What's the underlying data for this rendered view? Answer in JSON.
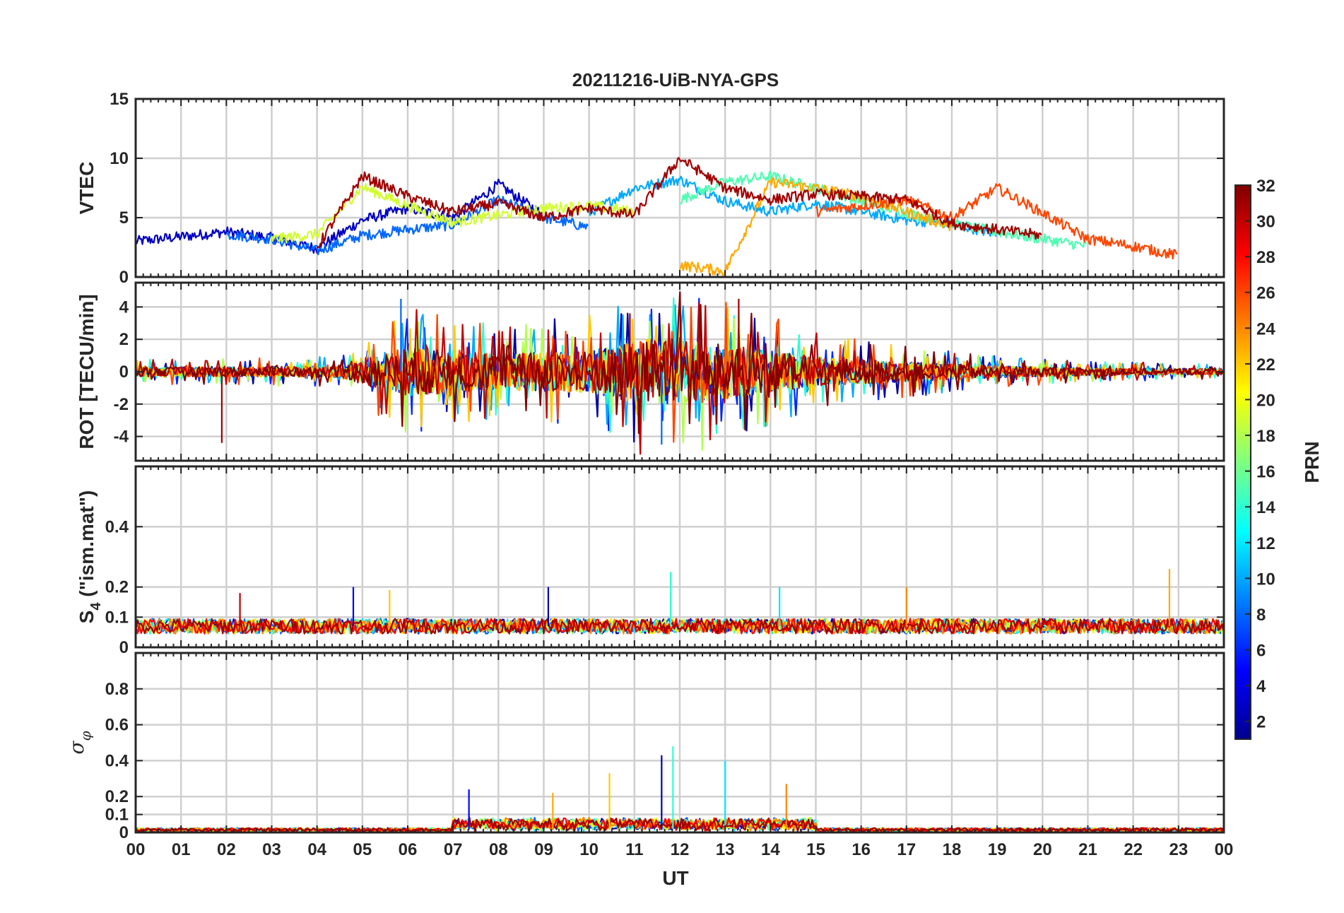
{
  "chart_data": [
    {
      "type": "line",
      "title": "20211216-UiB-NYA-GPS",
      "ylabel": "VTEC",
      "ylim": [
        0,
        15
      ],
      "yticks": [
        "0",
        "5",
        "10",
        "15"
      ],
      "xlabel": "",
      "note": "Multiple GPS PRN traces colored by PRN (1-32); overall envelope approx 1-6 TECU with enhancements up to ~10.5 around 11-12 UT",
      "series": [
        {
          "prn": 3,
          "x": [
            0.0,
            1.0,
            2.0,
            3.0,
            4.0,
            5.0,
            6.0,
            7.0,
            8.0,
            9.0
          ],
          "y": [
            3.0,
            3.4,
            3.8,
            3.3,
            2.4,
            4.8,
            5.8,
            5.0,
            7.8,
            5.2
          ]
        },
        {
          "prn": 8,
          "x": [
            2.0,
            3.0,
            4.0,
            5.0,
            6.0,
            7.0,
            8.0,
            9.0,
            10.0
          ],
          "y": [
            3.6,
            3.2,
            2.2,
            3.5,
            4.0,
            4.4,
            6.5,
            5.0,
            4.2
          ]
        },
        {
          "prn": 10,
          "x": [
            10.0,
            11.0,
            12.0,
            13.0,
            14.0,
            15.0,
            16.0,
            17.0,
            18.0,
            19.0
          ],
          "y": [
            5.4,
            7.5,
            8.2,
            6.4,
            5.5,
            6.2,
            5.5,
            4.8,
            4.5,
            3.6
          ]
        },
        {
          "prn": 15,
          "x": [
            12.0,
            13.0,
            14.0,
            15.0,
            16.0,
            17.0,
            18.0,
            19.0,
            20.0,
            21.0
          ],
          "y": [
            6.5,
            8.0,
            8.5,
            7.5,
            6.4,
            5.4,
            4.5,
            3.8,
            3.2,
            2.6
          ]
        },
        {
          "prn": 19,
          "x": [
            3.0,
            4.0,
            5.0,
            6.0,
            7.0,
            8.0,
            9.0,
            10.0,
            11.0
          ],
          "y": [
            3.2,
            3.6,
            7.6,
            6.0,
            4.6,
            5.2,
            5.8,
            6.0,
            5.5
          ]
        },
        {
          "prn": 23,
          "x": [
            12.0,
            13.0,
            14.0,
            15.0,
            16.0,
            17.0,
            18.0
          ],
          "y": [
            1.0,
            0.5,
            8.0,
            7.5,
            6.8,
            5.5,
            4.2
          ]
        },
        {
          "prn": 26,
          "x": [
            15.0,
            16.0,
            17.0,
            18.0,
            19.0,
            20.0,
            21.0,
            22.0,
            23.0
          ],
          "y": [
            5.5,
            6.0,
            6.5,
            5.0,
            7.5,
            5.4,
            3.2,
            2.6,
            1.8
          ]
        },
        {
          "prn": 31,
          "x": [
            4.0,
            5.0,
            6.0,
            7.0,
            8.0,
            9.0,
            10.0,
            11.0,
            12.0,
            13.0,
            14.0,
            15.0,
            16.0,
            17.0,
            18.0,
            19.0,
            20.0
          ],
          "y": [
            2.5,
            8.5,
            6.8,
            5.5,
            6.2,
            5.0,
            5.8,
            5.2,
            10.0,
            7.5,
            6.5,
            7.0,
            6.8,
            6.5,
            4.5,
            4.0,
            3.5
          ]
        }
      ]
    },
    {
      "type": "line",
      "ylabel": "ROT [TECU/min]",
      "ylim": [
        -5.5,
        5.5
      ],
      "yticks": [
        "-4",
        "-2",
        "0",
        "2",
        "4"
      ],
      "note": "Rate of TEC; fluctuations near 0, strongest ±4.5 between ~05 and 14 UT",
      "envelope": {
        "x": [
          0,
          2,
          4.5,
          6,
          8,
          10,
          11.5,
          13,
          15,
          17,
          19,
          21,
          24
        ],
        "amplitude": [
          0.5,
          0.5,
          0.6,
          2.5,
          1.8,
          2.2,
          3.5,
          2.8,
          1.5,
          1.0,
          0.6,
          0.4,
          0.3
        ]
      },
      "peaks": [
        {
          "x": 1.9,
          "y": -4.4
        },
        {
          "x": 5.85,
          "y": 4.5
        },
        {
          "x": 13.3,
          "y": 4.5
        },
        {
          "x": 11.6,
          "y": -4.5
        },
        {
          "x": 10.9,
          "y": 3.6
        }
      ]
    },
    {
      "type": "line",
      "ylabel": "S4 (\"ism.mat\")",
      "ylabel_main": "S",
      "ylabel_sub": "4",
      "ylabel_rest": " (\"ism.mat\")",
      "ylim": [
        0,
        0.6
      ],
      "yticks": [
        "0",
        "0.1",
        "0.2",
        "0.4"
      ],
      "note": "Amplitude scintillation index, baseline ~0.05-0.1 with spikes to ~0.25",
      "baseline": 0.07,
      "peaks": [
        {
          "x": 4.8,
          "y": 0.2
        },
        {
          "x": 5.6,
          "y": 0.19
        },
        {
          "x": 9.1,
          "y": 0.2
        },
        {
          "x": 11.8,
          "y": 0.25
        },
        {
          "x": 14.2,
          "y": 0.2
        },
        {
          "x": 17.0,
          "y": 0.2
        },
        {
          "x": 22.8,
          "y": 0.26
        },
        {
          "x": 2.3,
          "y": 0.18
        }
      ]
    },
    {
      "type": "line",
      "ylabel": "σ φ",
      "ylabel_main": "σ",
      "ylabel_sub": "φ",
      "xlabel": "UT",
      "ylim": [
        0,
        1.0
      ],
      "yticks": [
        "0",
        "0.1",
        "0.2",
        "0.4",
        "0.6",
        "0.8"
      ],
      "xticks": [
        "00",
        "01",
        "02",
        "03",
        "04",
        "05",
        "06",
        "07",
        "08",
        "09",
        "10",
        "11",
        "12",
        "13",
        "14",
        "15",
        "16",
        "17",
        "18",
        "19",
        "20",
        "21",
        "22",
        "23",
        "00"
      ],
      "note": "Phase scintillation index, baseline ~0.01-0.03 with enhancements 07-15 UT up to ~0.48",
      "peaks": [
        {
          "x": 7.35,
          "y": 0.24
        },
        {
          "x": 10.45,
          "y": 0.33
        },
        {
          "x": 11.6,
          "y": 0.43
        },
        {
          "x": 11.85,
          "y": 0.48
        },
        {
          "x": 13.0,
          "y": 0.4
        },
        {
          "x": 14.35,
          "y": 0.27
        },
        {
          "x": 9.2,
          "y": 0.22
        }
      ]
    }
  ],
  "colorbar": {
    "label": "PRN",
    "ticks": [
      "2",
      "4",
      "6",
      "8",
      "10",
      "12",
      "14",
      "16",
      "18",
      "20",
      "22",
      "24",
      "26",
      "28",
      "30",
      "32"
    ],
    "min": 1,
    "max": 32
  }
}
